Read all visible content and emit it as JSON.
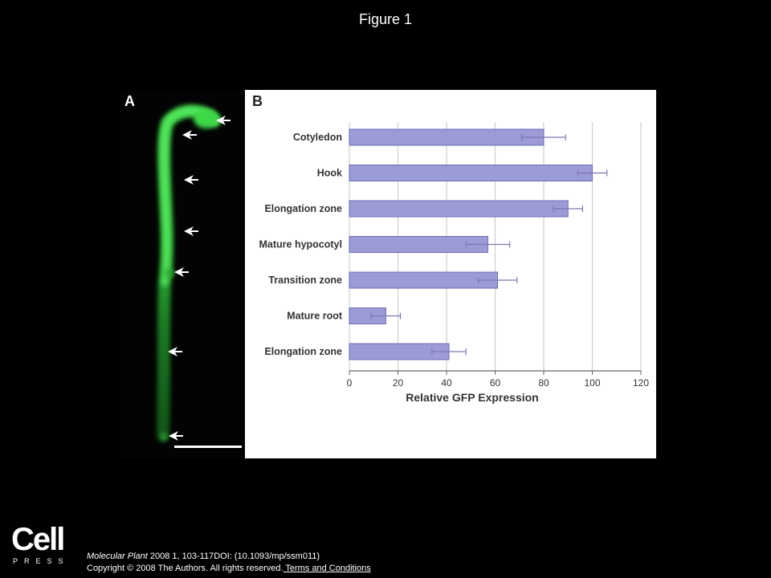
{
  "page": {
    "title": "Figure 1"
  },
  "panel_a": {
    "label": "A"
  },
  "panel_b": {
    "label": "B"
  },
  "citation": {
    "journal": "Molecular Plant",
    "details": " 2008 1, 103-117DOI: (10.1093/mp/ssm011)",
    "copyright": "Copyright © 2008 The Authors. All rights reserved.",
    "terms_link": " Terms and Conditions"
  },
  "logo": {
    "word": "Cell",
    "sub": "PRESS"
  },
  "colors": {
    "bar_fill": "#9b9bd6",
    "bar_stroke": "#6e6eb8",
    "gfp": "#2fcf3a"
  },
  "chart_data": {
    "type": "bar",
    "orientation": "horizontal",
    "categories": [
      "Cotyledon",
      "Hook",
      "Elongation zone",
      "Mature hypocotyl",
      "Transition zone",
      "Mature root",
      "Elongation zone"
    ],
    "values": [
      80,
      100,
      90,
      57,
      61,
      15,
      41
    ],
    "errors": [
      9,
      6,
      6,
      9,
      8,
      6,
      7
    ],
    "xlabel": "Relative GFP Expression",
    "xlim": [
      0,
      120
    ],
    "xticks": [
      0,
      20,
      40,
      60,
      80,
      100,
      120
    ],
    "grid": true
  }
}
